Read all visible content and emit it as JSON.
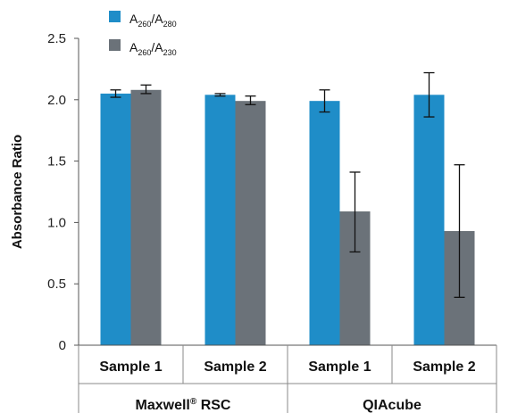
{
  "chart_data": {
    "type": "bar",
    "ylabel": "Absorbance Ratio",
    "ylim": [
      0,
      2.5
    ],
    "yticks": [
      0,
      0.5,
      1.0,
      1.5,
      2.0,
      2.5
    ],
    "yticklabels": [
      "0",
      "0.5",
      "1.0",
      "1.5",
      "2.0",
      "2.5"
    ],
    "categories": [
      "Sample 1",
      "Sample 2",
      "Sample 1",
      "Sample 2"
    ],
    "groups": [
      {
        "label": "Maxwell® RSC",
        "categories": [
          0,
          1
        ]
      },
      {
        "label": "QIAcube",
        "categories": [
          2,
          3
        ]
      }
    ],
    "series": [
      {
        "name": "A260/A280",
        "legend": {
          "main": "A",
          "sub1": "260",
          "slash": "/A",
          "sub2": "280"
        },
        "color": "#1f8dc8",
        "values": [
          2.05,
          2.04,
          1.99,
          2.04
        ],
        "error_low": [
          2.02,
          2.03,
          1.9,
          1.86
        ],
        "error_high": [
          2.08,
          2.05,
          2.08,
          2.22
        ]
      },
      {
        "name": "A260/A230",
        "legend": {
          "main": "A",
          "sub1": "260",
          "slash": "/A",
          "sub2": "230"
        },
        "color": "#6b7279",
        "values": [
          2.08,
          1.99,
          1.09,
          0.93
        ],
        "error_low": [
          2.05,
          1.96,
          0.76,
          0.39
        ],
        "error_high": [
          2.12,
          2.03,
          1.41,
          1.47
        ]
      }
    ],
    "legend_position": "top-left",
    "grid": false
  }
}
